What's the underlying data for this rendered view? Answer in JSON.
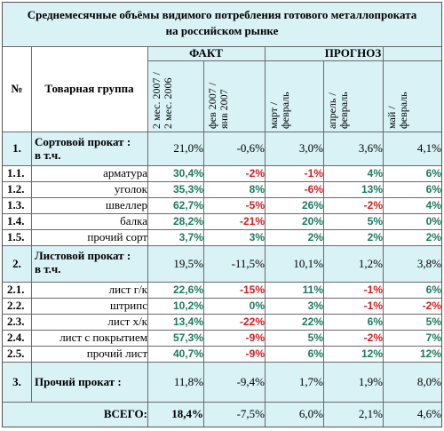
{
  "title_line1": "Среднемесячные объёмы видимого потребления готового металлопроката",
  "title_line2": "на российском рынке",
  "col_no": "№",
  "col_group": "Товарная группа",
  "fact": "ФАКТ",
  "forecast": "ПРОГНОЗ",
  "col_headers": [
    [
      "2 мес. 2007 /",
      "2 мес. 2006"
    ],
    [
      "фев 2007 /",
      "янв 2007"
    ],
    [
      "март /",
      "февраль"
    ],
    [
      "апрель /",
      "февраль"
    ],
    [
      "май /",
      "февраль"
    ]
  ],
  "sections": [
    {
      "no": "1.",
      "name1": "Сортовой прокат :",
      "name2": "в т.ч.",
      "values": [
        "21,0%",
        "-0,6%",
        "3,0%",
        "3,6%",
        "4,1%"
      ],
      "items": [
        {
          "no": "1.1.",
          "name": "арматура",
          "values": [
            "30,4%",
            "-2%",
            "-1%",
            "4%",
            "6%"
          ]
        },
        {
          "no": "1.2.",
          "name": "уголок",
          "values": [
            "35,3%",
            "8%",
            "-6%",
            "13%",
            "6%"
          ]
        },
        {
          "no": "1.3.",
          "name": "швеллер",
          "values": [
            "62,7%",
            "-5%",
            "26%",
            "-2%",
            "4%"
          ]
        },
        {
          "no": "1.4.",
          "name": "балка",
          "values": [
            "28,2%",
            "-21%",
            "20%",
            "5%",
            "0%"
          ]
        },
        {
          "no": "1.5.",
          "name": "прочий сорт",
          "values": [
            "3,7%",
            "3%",
            "2%",
            "2%",
            "2%"
          ]
        }
      ]
    },
    {
      "no": "2.",
      "name1": "Листовой прокат :",
      "name2": "в т.ч.",
      "values": [
        "19,5%",
        "-11,5%",
        "10,1%",
        "1,2%",
        "3,8%"
      ],
      "items": [
        {
          "no": "2.1.",
          "name": "лист г/к",
          "values": [
            "22,6%",
            "-15%",
            "11%",
            "-1%",
            "6%"
          ]
        },
        {
          "no": "2.2.",
          "name": "штрипс",
          "values": [
            "10,2%",
            "0%",
            "3%",
            "-1%",
            "-2%"
          ]
        },
        {
          "no": "2.3.",
          "name": "лист х/к",
          "values": [
            "13,4%",
            "-22%",
            "22%",
            "6%",
            "5%"
          ]
        },
        {
          "no": "2.4.",
          "name": "лист с покрытием",
          "values": [
            "57,3%",
            "-9%",
            "5%",
            "-2%",
            "7%"
          ]
        },
        {
          "no": "2.5.",
          "name": "прочий лист",
          "values": [
            "40,7%",
            "-9%",
            "6%",
            "12%",
            "12%"
          ]
        }
      ]
    }
  ],
  "other": {
    "no": "3.",
    "name": "Прочий прокат :",
    "values": [
      "11,8%",
      "-9,4%",
      "1,7%",
      "1,9%",
      "8,0%"
    ]
  },
  "total": {
    "label": "ВСЕГО:",
    "values": [
      "18,4%",
      "-7,5%",
      "6,0%",
      "2,1%",
      "4,6%"
    ]
  },
  "colors": {
    "positive": "#1a7a5e",
    "negative": "#d21e1e",
    "header_bg": "#d9f2f5",
    "row_bg": "#ffffff"
  }
}
